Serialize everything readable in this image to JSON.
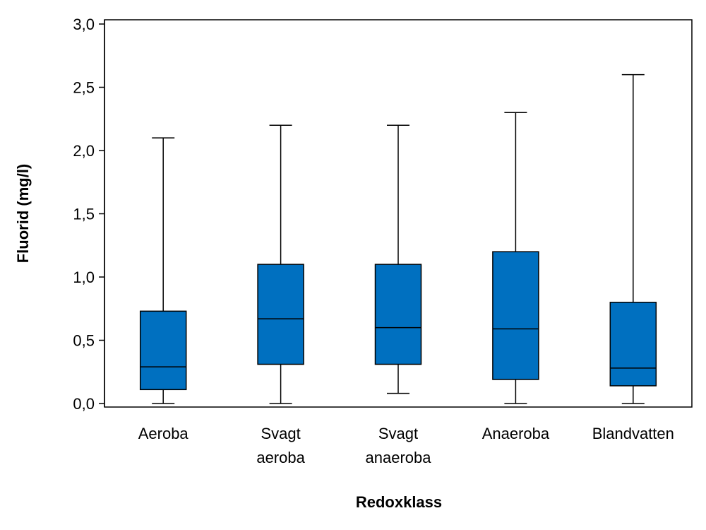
{
  "chart_data": {
    "type": "boxplot",
    "title": "",
    "xlabel": "Redoxklass",
    "ylabel": "Fluorid (mg/l)",
    "ylim": [
      0,
      3.0
    ],
    "yticks": [
      "0,0",
      "0,5",
      "1,0",
      "1,5",
      "2,0",
      "2,5",
      "3,0"
    ],
    "ytick_values": [
      0,
      0.5,
      1.0,
      1.5,
      2.0,
      2.5,
      3.0
    ],
    "box_color": "#0070C0",
    "categories": [
      {
        "lines": [
          "Aeroba"
        ],
        "min": 0.0,
        "q1": 0.11,
        "median": 0.29,
        "q3": 0.73,
        "max": 2.1
      },
      {
        "lines": [
          "Svagt",
          "aeroba"
        ],
        "min": 0.0,
        "q1": 0.31,
        "median": 0.67,
        "q3": 1.1,
        "max": 2.2
      },
      {
        "lines": [
          "Svagt",
          "anaeroba"
        ],
        "min": 0.08,
        "q1": 0.31,
        "median": 0.6,
        "q3": 1.1,
        "max": 2.2
      },
      {
        "lines": [
          "Anaeroba"
        ],
        "min": 0.0,
        "q1": 0.19,
        "median": 0.59,
        "q3": 1.2,
        "max": 2.3
      },
      {
        "lines": [
          "Blandvatten"
        ],
        "min": 0.0,
        "q1": 0.14,
        "median": 0.28,
        "q3": 0.8,
        "max": 2.6
      }
    ]
  }
}
